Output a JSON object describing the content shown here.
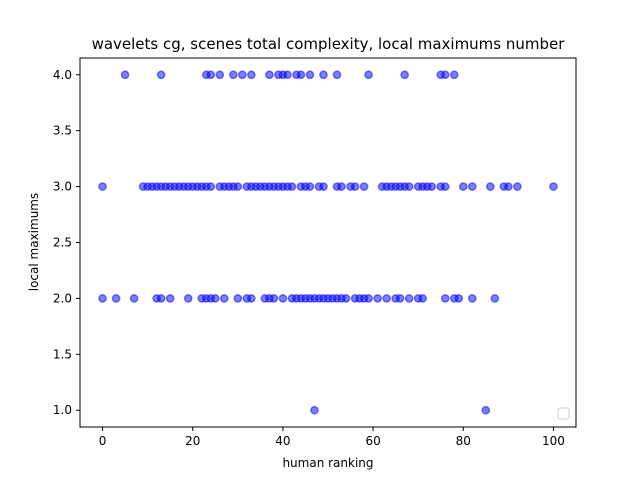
{
  "chart_data": {
    "type": "scatter",
    "title": "wavelets cg, scenes total complexity, local maximums number",
    "xlabel": "human ranking",
    "ylabel": "local maximums",
    "xlim": [
      -5,
      105
    ],
    "ylim": [
      0.85,
      4.15
    ],
    "xticks": [
      0,
      20,
      40,
      60,
      80,
      100
    ],
    "yticks": [
      1.0,
      1.5,
      2.0,
      2.5,
      3.0,
      3.5,
      4.0
    ],
    "xtick_labels": [
      "0",
      "20",
      "40",
      "60",
      "80",
      "100"
    ],
    "ytick_labels": [
      "1.0",
      "1.5",
      "2.0",
      "2.5",
      "3.0",
      "3.5",
      "4.0"
    ],
    "grid": false,
    "legend": "lower-right",
    "marker_color": "#0000ff",
    "marker_alpha": 0.5,
    "series": [
      {
        "points": [
          [
            5,
            4
          ],
          [
            13,
            4
          ],
          [
            23,
            4
          ],
          [
            24,
            4
          ],
          [
            26,
            4
          ],
          [
            29,
            4
          ],
          [
            31,
            4
          ],
          [
            33,
            4
          ],
          [
            37,
            4
          ],
          [
            39,
            4
          ],
          [
            40,
            4
          ],
          [
            41,
            4
          ],
          [
            43,
            4
          ],
          [
            44,
            4
          ],
          [
            46,
            4
          ],
          [
            49,
            4
          ],
          [
            52,
            4
          ],
          [
            59,
            4
          ],
          [
            67,
            4
          ],
          [
            75,
            4
          ],
          [
            76,
            4
          ],
          [
            78,
            4
          ],
          [
            0,
            3
          ],
          [
            9,
            3
          ],
          [
            10,
            3
          ],
          [
            11,
            3
          ],
          [
            12,
            3
          ],
          [
            13,
            3
          ],
          [
            14,
            3
          ],
          [
            15,
            3
          ],
          [
            16,
            3
          ],
          [
            17,
            3
          ],
          [
            18,
            3
          ],
          [
            19,
            3
          ],
          [
            20,
            3
          ],
          [
            21,
            3
          ],
          [
            22,
            3
          ],
          [
            23,
            3
          ],
          [
            24,
            3
          ],
          [
            26,
            3
          ],
          [
            27,
            3
          ],
          [
            28,
            3
          ],
          [
            29,
            3
          ],
          [
            30,
            3
          ],
          [
            32,
            3
          ],
          [
            33,
            3
          ],
          [
            34,
            3
          ],
          [
            35,
            3
          ],
          [
            36,
            3
          ],
          [
            37,
            3
          ],
          [
            38,
            3
          ],
          [
            39,
            3
          ],
          [
            40,
            3
          ],
          [
            41,
            3
          ],
          [
            42,
            3
          ],
          [
            44,
            3
          ],
          [
            45,
            3
          ],
          [
            46,
            3
          ],
          [
            48,
            3
          ],
          [
            49,
            3
          ],
          [
            52,
            3
          ],
          [
            53,
            3
          ],
          [
            55,
            3
          ],
          [
            56,
            3
          ],
          [
            58,
            3
          ],
          [
            62,
            3
          ],
          [
            63,
            3
          ],
          [
            64,
            3
          ],
          [
            65,
            3
          ],
          [
            66,
            3
          ],
          [
            67,
            3
          ],
          [
            68,
            3
          ],
          [
            70,
            3
          ],
          [
            71,
            3
          ],
          [
            72,
            3
          ],
          [
            73,
            3
          ],
          [
            75,
            3
          ],
          [
            76,
            3
          ],
          [
            80,
            3
          ],
          [
            82,
            3
          ],
          [
            86,
            3
          ],
          [
            89,
            3
          ],
          [
            90,
            3
          ],
          [
            92,
            3
          ],
          [
            100,
            3
          ],
          [
            0,
            2
          ],
          [
            3,
            2
          ],
          [
            7,
            2
          ],
          [
            12,
            2
          ],
          [
            13,
            2
          ],
          [
            15,
            2
          ],
          [
            19,
            2
          ],
          [
            22,
            2
          ],
          [
            23,
            2
          ],
          [
            24,
            2
          ],
          [
            25,
            2
          ],
          [
            27,
            2
          ],
          [
            30,
            2
          ],
          [
            32,
            2
          ],
          [
            33,
            2
          ],
          [
            36,
            2
          ],
          [
            37,
            2
          ],
          [
            38,
            2
          ],
          [
            40,
            2
          ],
          [
            42,
            2
          ],
          [
            43,
            2
          ],
          [
            44,
            2
          ],
          [
            45,
            2
          ],
          [
            46,
            2
          ],
          [
            47,
            2
          ],
          [
            48,
            2
          ],
          [
            49,
            2
          ],
          [
            50,
            2
          ],
          [
            51,
            2
          ],
          [
            52,
            2
          ],
          [
            53,
            2
          ],
          [
            54,
            2
          ],
          [
            56,
            2
          ],
          [
            57,
            2
          ],
          [
            58,
            2
          ],
          [
            59,
            2
          ],
          [
            61,
            2
          ],
          [
            63,
            2
          ],
          [
            65,
            2
          ],
          [
            66,
            2
          ],
          [
            68,
            2
          ],
          [
            70,
            2
          ],
          [
            71,
            2
          ],
          [
            76,
            2
          ],
          [
            78,
            2
          ],
          [
            79,
            2
          ],
          [
            82,
            2
          ],
          [
            87,
            2
          ],
          [
            47,
            1
          ],
          [
            85,
            1
          ]
        ]
      }
    ]
  }
}
